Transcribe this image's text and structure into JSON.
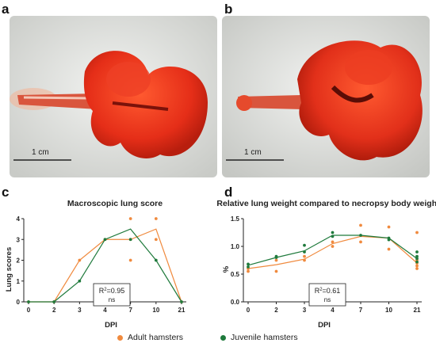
{
  "panels": {
    "a": "a",
    "b": "b",
    "c": "c",
    "d": "d"
  },
  "photos": {
    "scale_bar_a": "1 cm",
    "scale_bar_b": "1 cm"
  },
  "legend": {
    "adult": "Adult hamsters",
    "juvenile": "Juvenile hamsters"
  },
  "colors": {
    "adult": "#f08a3e",
    "juvenile": "#1f7a3c",
    "tissue": "#e8321c",
    "background": "#dcdcd8"
  },
  "chart_data": [
    {
      "type": "line",
      "title": "Macroscopic lung score",
      "xlabel": "DPI",
      "ylabel": "Lung scores",
      "categories": [
        "0",
        "2",
        "3",
        "4",
        "7",
        "10",
        "21"
      ],
      "ylim": [
        0,
        4
      ],
      "yticks": [
        0,
        1,
        2,
        3,
        4
      ],
      "annotation": {
        "r2_label": "R",
        "r2_sup": "2",
        "r2_value": "=0.95",
        "sig": "ns"
      },
      "series": [
        {
          "name": "Adult hamsters",
          "color": "#f08a3e",
          "line": [
            0,
            0,
            2,
            3,
            3,
            3.5,
            0
          ],
          "points": [
            [
              0,
              0
            ],
            [
              1,
              0
            ],
            [
              2,
              2
            ],
            [
              3,
              3
            ],
            [
              4,
              4
            ],
            [
              4,
              3
            ],
            [
              4,
              2
            ],
            [
              5,
              4
            ],
            [
              5,
              3
            ],
            [
              6,
              0
            ]
          ]
        },
        {
          "name": "Juvenile hamsters",
          "color": "#1f7a3c",
          "line": [
            0,
            0,
            1,
            3,
            3.5,
            2,
            0
          ],
          "points": [
            [
              0,
              0
            ],
            [
              1,
              0
            ],
            [
              2,
              1
            ],
            [
              3,
              3
            ],
            [
              4,
              3
            ],
            [
              5,
              2
            ],
            [
              6,
              0
            ]
          ]
        }
      ]
    },
    {
      "type": "line",
      "title": "Relative lung weight compared to necropsy body weight",
      "xlabel": "DPI",
      "ylabel": "%",
      "categories": [
        "0",
        "2",
        "3",
        "4",
        "7",
        "10",
        "21"
      ],
      "ylim": [
        0,
        1.5
      ],
      "yticks": [
        "0.0",
        "0.5",
        "1.0",
        "1.5"
      ],
      "annotation": {
        "r2_label": "R",
        "r2_sup": "2",
        "r2_value": "=0.61",
        "sig": "ns"
      },
      "series": [
        {
          "name": "Adult hamsters",
          "color": "#f08a3e",
          "line": [
            0.6,
            0.67,
            0.77,
            1.05,
            1.18,
            1.15,
            0.7
          ],
          "points": [
            [
              0,
              0.55
            ],
            [
              0,
              0.6
            ],
            [
              1,
              0.55
            ],
            [
              1,
              0.75
            ],
            [
              2,
              0.75
            ],
            [
              2,
              0.82
            ],
            [
              3,
              1.0
            ],
            [
              3,
              1.08
            ],
            [
              4,
              1.08
            ],
            [
              4,
              1.38
            ],
            [
              5,
              0.95
            ],
            [
              5,
              1.35
            ],
            [
              6,
              1.25
            ],
            [
              6,
              0.6
            ],
            [
              6,
              0.65
            ],
            [
              6,
              0.7
            ],
            [
              6,
              0.75
            ]
          ]
        },
        {
          "name": "Juvenile hamsters",
          "color": "#1f7a3c",
          "line": [
            0.66,
            0.8,
            0.92,
            1.2,
            1.2,
            1.15,
            0.78
          ],
          "points": [
            [
              0,
              0.63
            ],
            [
              0,
              0.68
            ],
            [
              1,
              0.8
            ],
            [
              1,
              0.82
            ],
            [
              2,
              0.9
            ],
            [
              2,
              1.02
            ],
            [
              3,
              1.18
            ],
            [
              3,
              1.25
            ],
            [
              4,
              1.2
            ],
            [
              5,
              1.12
            ],
            [
              5,
              1.15
            ],
            [
              6,
              0.9
            ],
            [
              6,
              0.82
            ],
            [
              6,
              0.78
            ],
            [
              6,
              0.72
            ]
          ]
        }
      ]
    }
  ]
}
